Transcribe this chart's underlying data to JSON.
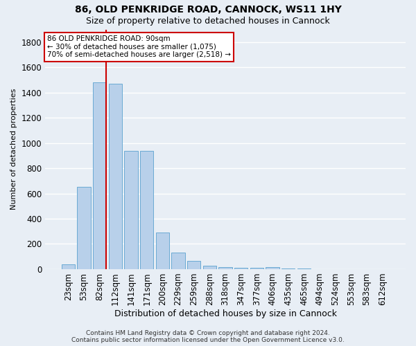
{
  "title": "86, OLD PENKRIDGE ROAD, CANNOCK, WS11 1HY",
  "subtitle": "Size of property relative to detached houses in Cannock",
  "xlabel": "Distribution of detached houses by size in Cannock",
  "ylabel": "Number of detached properties",
  "categories": [
    "23sqm",
    "53sqm",
    "82sqm",
    "112sqm",
    "141sqm",
    "171sqm",
    "200sqm",
    "229sqm",
    "259sqm",
    "288sqm",
    "318sqm",
    "347sqm",
    "377sqm",
    "406sqm",
    "435sqm",
    "465sqm",
    "494sqm",
    "524sqm",
    "553sqm",
    "583sqm",
    "612sqm"
  ],
  "values": [
    40,
    650,
    1480,
    1470,
    940,
    935,
    290,
    130,
    65,
    28,
    18,
    12,
    10,
    18,
    5,
    3,
    2,
    1,
    1,
    1,
    1
  ],
  "bar_color": "#b8d0ea",
  "bar_edge_color": "#6aaad4",
  "red_line_index": 2,
  "annotation_line1": "86 OLD PENKRIDGE ROAD: 90sqm",
  "annotation_line2": "← 30% of detached houses are smaller (1,075)",
  "annotation_line3": "70% of semi-detached houses are larger (2,518) →",
  "annotation_box_color": "#ffffff",
  "annotation_box_edge": "#cc0000",
  "footer_line1": "Contains HM Land Registry data © Crown copyright and database right 2024.",
  "footer_line2": "Contains public sector information licensed under the Open Government Licence v3.0.",
  "background_color": "#e8eef5",
  "grid_color": "#ffffff",
  "ylim": [
    0,
    1900
  ],
  "yticks": [
    0,
    200,
    400,
    600,
    800,
    1000,
    1200,
    1400,
    1600,
    1800
  ],
  "title_fontsize": 10,
  "subtitle_fontsize": 9,
  "ylabel_fontsize": 8,
  "xlabel_fontsize": 9
}
